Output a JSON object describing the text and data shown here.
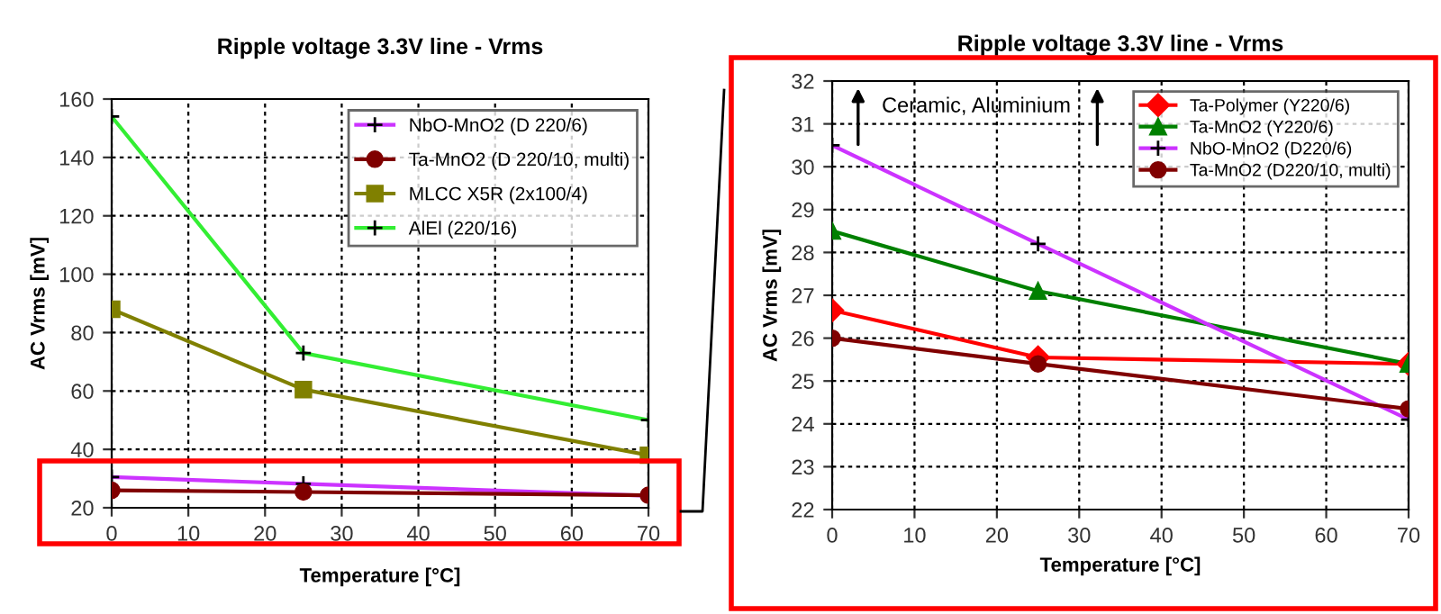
{
  "chart_data": [
    {
      "type": "line",
      "title": "Ripple voltage 3.3V line - Vrms",
      "xlabel": "Temperature [°C]",
      "ylabel": "AC Vrms [mV]",
      "x": [
        0,
        25,
        70
      ],
      "xlim": [
        0,
        70
      ],
      "xticks": [
        0,
        10,
        20,
        30,
        40,
        50,
        60,
        70
      ],
      "ylim": [
        20,
        160
      ],
      "yticks": [
        20,
        40,
        60,
        80,
        100,
        120,
        140,
        160
      ],
      "grid": true,
      "legend": "top right",
      "series": [
        {
          "name": "NbO-MnO2 (D 220/6)",
          "color": "#cc33ff",
          "marker": "cross",
          "values": [
            30.5,
            28.2,
            24.1
          ]
        },
        {
          "name": "Ta-MnO2 (D 220/10, multi)",
          "color": "#800000",
          "marker": "circle",
          "values": [
            26.0,
            25.4,
            24.3
          ]
        },
        {
          "name": "MLCC X5R (2x100/4)",
          "color": "#808000",
          "marker": "square",
          "values": [
            88,
            60.5,
            38
          ]
        },
        {
          "name": "AlEl (220/16)",
          "color": "#33ee33",
          "marker": "cross",
          "values": [
            154,
            73,
            50
          ]
        }
      ]
    },
    {
      "type": "line",
      "title": "Ripple voltage 3.3V line - Vrms",
      "xlabel": "Temperature [°C]",
      "ylabel": "AC Vrms [mV]",
      "x": [
        0,
        25,
        70
      ],
      "xlim": [
        0,
        70
      ],
      "xticks": [
        0,
        10,
        20,
        30,
        40,
        50,
        60,
        70
      ],
      "ylim": [
        22,
        32
      ],
      "yticks": [
        22,
        23,
        24,
        25,
        26,
        27,
        28,
        29,
        30,
        31,
        32
      ],
      "grid": true,
      "legend": "top right",
      "annotations": [
        "Ceramic, Aluminium"
      ],
      "series": [
        {
          "name": "Ta-Polymer (Y220/6)",
          "color": "#ff0000",
          "marker": "diamond",
          "values": [
            26.65,
            25.55,
            25.4
          ]
        },
        {
          "name": "Ta-MnO2 (Y220/6)",
          "color": "#008000",
          "marker": "triangle",
          "values": [
            28.5,
            27.1,
            25.4
          ]
        },
        {
          "name": "NbO-MnO2 (D220/6)",
          "color": "#cc33ff",
          "marker": "cross",
          "values": [
            30.5,
            28.2,
            24.1
          ]
        },
        {
          "name": "Ta-MnO2 (D220/10, multi)",
          "color": "#800000",
          "marker": "circle",
          "values": [
            26.0,
            25.4,
            24.35
          ]
        }
      ]
    }
  ]
}
